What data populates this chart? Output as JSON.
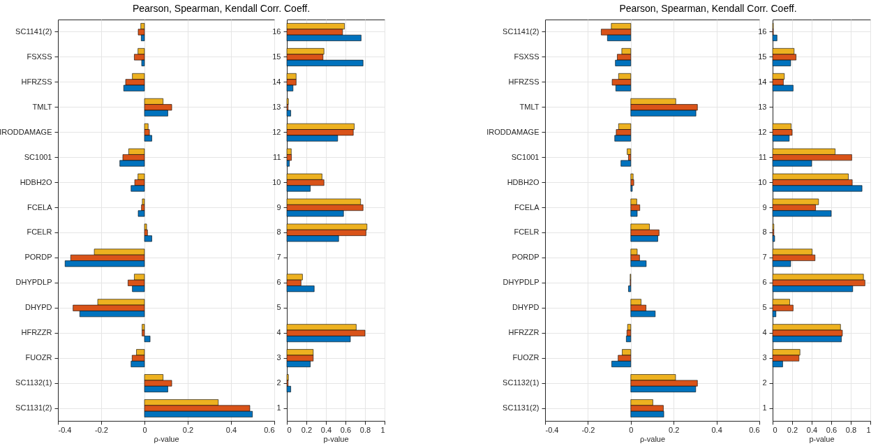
{
  "chart_data": [
    {
      "type": "bar",
      "orientation": "horizontal",
      "title": "Pearson, Spearman, Kendall Corr. Coeff.",
      "xlabel": "ρ-value",
      "grid": true,
      "xlim": [
        -0.4,
        0.6
      ],
      "xticks": [
        -0.4,
        -0.2,
        0,
        0.2,
        0.4,
        0.6
      ],
      "categories": [
        "SC1141(2)",
        "FSXSS",
        "HFRZSS",
        "TMLT",
        "IRODDAMAGE",
        "SC1001",
        "HDBH2O",
        "FCELA",
        "FCELR",
        "PORDP",
        "DHYPDLP",
        "DHYPD",
        "HFRZZR",
        "FUOZR",
        "SC1132(1)",
        "SC1131(2)"
      ],
      "series": [
        {
          "color": "#edb120",
          "values": [
            -0.017,
            -0.03,
            -0.056,
            0.086,
            0.017,
            -0.073,
            -0.03,
            -0.01,
            0.01,
            -0.232,
            -0.047,
            -0.216,
            -0.011,
            -0.037,
            0.086,
            0.341
          ]
        },
        {
          "color": "#d95319",
          "values": [
            -0.029,
            -0.047,
            -0.087,
            0.126,
            0.023,
            -0.1,
            -0.045,
            -0.014,
            0.014,
            -0.341,
            -0.076,
            -0.33,
            -0.011,
            -0.057,
            0.126,
            0.487
          ]
        },
        {
          "color": "#0072bd",
          "values": [
            -0.015,
            -0.013,
            -0.096,
            0.108,
            0.034,
            -0.114,
            -0.062,
            -0.029,
            0.034,
            -0.367,
            -0.056,
            -0.299,
            0.026,
            -0.062,
            0.108,
            0.499
          ]
        }
      ]
    },
    {
      "type": "bar",
      "orientation": "horizontal",
      "xlabel": "p-value",
      "grid": true,
      "xlim": [
        0,
        1
      ],
      "xticks": [
        0,
        0.2,
        0.4,
        0.6,
        0.8,
        1
      ],
      "categories": [
        "16",
        "15",
        "14",
        "13",
        "12",
        "11",
        "10",
        "9",
        "8",
        "7",
        "6",
        "5",
        "4",
        "3",
        "2",
        "1"
      ],
      "series": [
        {
          "color": "#edb120",
          "values": [
            0.59,
            0.38,
            0.095,
            0.016,
            0.69,
            0.045,
            0.36,
            0.755,
            0.82,
            0,
            0.16,
            0,
            0.71,
            0.27,
            0.016,
            0
          ]
        },
        {
          "color": "#d95319",
          "values": [
            0.57,
            0.37,
            0.095,
            0.013,
            0.68,
            0.047,
            0.38,
            0.78,
            0.81,
            0,
            0.145,
            0,
            0.8,
            0.27,
            0.013,
            0
          ]
        },
        {
          "color": "#0072bd",
          "values": [
            0.76,
            0.78,
            0.063,
            0.04,
            0.52,
            0.026,
            0.24,
            0.58,
            0.53,
            0,
            0.28,
            0,
            0.65,
            0.24,
            0.04,
            0
          ]
        }
      ]
    },
    {
      "type": "bar",
      "orientation": "horizontal",
      "title": "Pearson, Spearman, Kendall Corr. Coeff.",
      "xlabel": "ρ-value",
      "grid": true,
      "xlim": [
        -0.4,
        0.6
      ],
      "xticks": [
        -0.4,
        -0.2,
        0,
        0.2,
        0.4,
        0.6
      ],
      "categories": [
        "SC1141(2)",
        "FSXSS",
        "HFRZSS",
        "TMLT",
        "IRODDAMAGE",
        "SC1001",
        "HDBH2O",
        "FCELA",
        "FCELR",
        "PORDP",
        "DHYPDLP",
        "DHYPD",
        "HFRZZR",
        "FUOZR",
        "SC1132(1)",
        "SC1131(2)"
      ],
      "series": [
        {
          "color": "#edb120",
          "values": [
            -0.091,
            -0.042,
            -0.057,
            0.21,
            -0.057,
            -0.017,
            0.011,
            0.028,
            0.087,
            0.03,
            -0.003,
            0.048,
            -0.015,
            -0.04,
            0.209,
            0.103
          ]
        },
        {
          "color": "#d95319",
          "values": [
            -0.138,
            -0.063,
            -0.087,
            0.311,
            -0.068,
            -0.011,
            0.014,
            0.042,
            0.132,
            0.041,
            -0.003,
            0.071,
            -0.018,
            -0.059,
            0.311,
            0.152
          ]
        },
        {
          "color": "#0072bd",
          "values": [
            -0.109,
            -0.072,
            -0.07,
            0.304,
            -0.075,
            -0.046,
            0.007,
            0.03,
            0.126,
            0.072,
            -0.011,
            0.114,
            -0.021,
            -0.089,
            0.303,
            0.154
          ]
        }
      ]
    },
    {
      "type": "bar",
      "orientation": "horizontal",
      "xlabel": "p-value",
      "grid": true,
      "xlim": [
        0,
        1
      ],
      "xticks": [
        0,
        0.2,
        0.4,
        0.6,
        0.8,
        1
      ],
      "categories": [
        "16",
        "15",
        "14",
        "13",
        "12",
        "11",
        "10",
        "9",
        "8",
        "7",
        "6",
        "5",
        "4",
        "3",
        "2",
        "1"
      ],
      "series": [
        {
          "color": "#edb120",
          "values": [
            0.008,
            0.22,
            0.12,
            0,
            0.19,
            0.64,
            0.775,
            0.47,
            0.013,
            0.405,
            0.93,
            0.175,
            0.695,
            0.28,
            0,
            0
          ]
        },
        {
          "color": "#d95319",
          "values": [
            0.008,
            0.24,
            0.11,
            0,
            0.2,
            0.81,
            0.815,
            0.44,
            0.013,
            0.434,
            0.945,
            0.21,
            0.714,
            0.27,
            0,
            0
          ]
        },
        {
          "color": "#0072bd",
          "values": [
            0.045,
            0.185,
            0.21,
            0,
            0.17,
            0.4,
            0.915,
            0.6,
            0.021,
            0.185,
            0.82,
            0.034,
            0.704,
            0.103,
            0,
            0
          ]
        }
      ]
    }
  ]
}
